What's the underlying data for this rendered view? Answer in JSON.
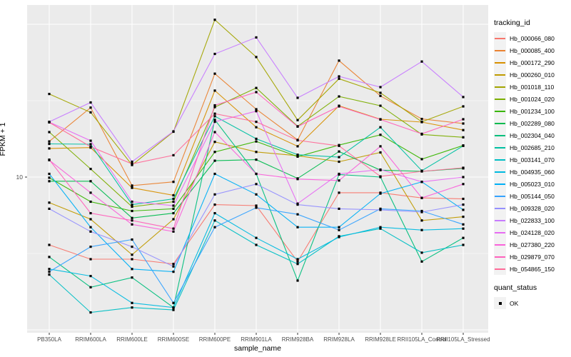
{
  "figure": {
    "y_axis": {
      "title": "FPKM + 1",
      "tick_label": "10",
      "scale": "log10"
    },
    "x_axis": {
      "title": "sample_name"
    },
    "legend": {
      "tracking_title": "tracking_id",
      "quant_title": "quant_status",
      "quant_items": [
        {
          "label": "OK",
          "marker": "black-square"
        }
      ]
    },
    "panel_background": "#EBEBEB",
    "grid_color": "#FFFFFF",
    "tick_color": "#333333",
    "marker_color": "#000000"
  },
  "chart_data": {
    "type": "line",
    "title": "",
    "xlabel": "sample_name",
    "ylabel": "FPKM + 1",
    "yscale": "log10",
    "ylim": [
      1,
      120
    ],
    "y_major_ticks": [
      1,
      10,
      100
    ],
    "y_minor_ticks": [
      3.162,
      31.62
    ],
    "grid": "white major and minor on grey panel",
    "legend_position": "right",
    "marker": "small black square (quant_status OK)",
    "categories": [
      "PB350LA",
      "RRIM600LA",
      "RRIM600LE",
      "RRIM600SE",
      "RRIM600PE",
      "RRIM901LA",
      "RRIM928BA",
      "RRIM928LA",
      "RRIM928LE",
      "RRII105LA_Control",
      "RRII105LA_Stressed"
    ],
    "series": [
      {
        "name": "Hb_000066_080",
        "color": "#F8766D",
        "values": [
          3.6,
          2.9,
          2.9,
          2.7,
          6.6,
          6.5,
          2.8,
          7.9,
          7.9,
          7.3,
          7.2
        ]
      },
      {
        "name": "Hb_000085_400",
        "color": "#EA8331",
        "values": [
          17.1,
          28.5,
          8.8,
          9.3,
          47.5,
          27.8,
          17.5,
          57.8,
          34.0,
          24.0,
          22.4
        ]
      },
      {
        "name": "Hb_000172_290",
        "color": "#D89000",
        "values": [
          15.4,
          15.6,
          8.5,
          7.6,
          36.8,
          21.2,
          15.9,
          29.3,
          23.9,
          22.9,
          20.3
        ]
      },
      {
        "name": "Hb_000260_010",
        "color": "#C09B00",
        "values": [
          6.8,
          5.3,
          3.1,
          5.3,
          17.0,
          14.6,
          13.8,
          12.6,
          14.5,
          5.2,
          5.5
        ]
      },
      {
        "name": "Hb_001018_110",
        "color": "#A3A500",
        "values": [
          35.0,
          26.5,
          12.0,
          19.8,
          107.0,
          61.0,
          23.6,
          44.0,
          35.6,
          23.0,
          29.0
        ]
      },
      {
        "name": "Hb_001024_020",
        "color": "#7CAE00",
        "values": [
          19.7,
          11.3,
          6.4,
          6.9,
          28.7,
          38.3,
          21.5,
          33.7,
          29.3,
          19.0,
          18.2
        ]
      },
      {
        "name": "Hb_001234_100",
        "color": "#39B600",
        "values": [
          9.9,
          6.9,
          6.0,
          6.2,
          14.6,
          17.1,
          13.6,
          16.2,
          18.9,
          13.1,
          16.1
        ]
      },
      {
        "name": "Hb_002289_080",
        "color": "#00BB4E",
        "values": [
          9.4,
          9.4,
          5.4,
          5.8,
          12.8,
          13.0,
          9.8,
          14.7,
          11.1,
          10.9,
          11.4
        ]
      },
      {
        "name": "Hb_002304_040",
        "color": "#00BF7D",
        "values": [
          3.0,
          1.9,
          2.2,
          1.4,
          23.7,
          10.5,
          2.1,
          10.4,
          10.0,
          2.8,
          4.0
        ]
      },
      {
        "name": "Hb_002685_210",
        "color": "#00C1A3",
        "values": [
          16.5,
          16.4,
          6.6,
          7.2,
          25.0,
          17.8,
          14.0,
          13.5,
          21.2,
          11.0,
          16.0
        ]
      },
      {
        "name": "Hb_003141_070",
        "color": "#00BFC4",
        "values": [
          2.3,
          1.3,
          1.4,
          1.35,
          5.2,
          3.6,
          2.7,
          4.1,
          4.6,
          3.2,
          3.6
        ]
      },
      {
        "name": "Hb_004935_060",
        "color": "#00BAE0",
        "values": [
          2.5,
          2.25,
          1.5,
          1.4,
          5.8,
          4.0,
          2.9,
          4.05,
          4.7,
          4.5,
          4.6
        ]
      },
      {
        "name": "Hb_005023_010",
        "color": "#00B0F6",
        "values": [
          10.5,
          4.7,
          2.5,
          2.4,
          10.5,
          7.7,
          4.7,
          4.7,
          7.8,
          9.3,
          6.1
        ]
      },
      {
        "name": "Hb_005144_050",
        "color": "#35A2FF",
        "values": [
          2.4,
          3.5,
          3.9,
          1.5,
          4.7,
          6.3,
          5.7,
          4.5,
          6.2,
          6.0,
          4.9
        ]
      },
      {
        "name": "Hb_009328_020",
        "color": "#9590FF",
        "values": [
          6.2,
          4.4,
          3.5,
          2.6,
          7.7,
          9.0,
          6.6,
          6.2,
          6.1,
          5.9,
          6.6
        ]
      },
      {
        "name": "Hb_022833_100",
        "color": "#C77CFF",
        "values": [
          23.0,
          30.8,
          12.6,
          19.9,
          64.0,
          82.0,
          33.0,
          45.6,
          38.8,
          57.0,
          33.4
        ]
      },
      {
        "name": "Hb_024128_020",
        "color": "#E76BF3",
        "values": [
          22.9,
          17.3,
          6.9,
          6.5,
          23.0,
          27.0,
          6.7,
          10.5,
          11.2,
          9.3,
          10.0
        ]
      },
      {
        "name": "Hb_027380_220",
        "color": "#FA62DB",
        "values": [
          12.9,
          7.9,
          4.9,
          4.4,
          19.7,
          10.5,
          9.7,
          9.5,
          15.9,
          7.3,
          9.0
        ]
      },
      {
        "name": "Hb_029879_070",
        "color": "#FF62BC",
        "values": [
          13.0,
          5.8,
          5.2,
          4.6,
          29.5,
          36.0,
          21.4,
          29.0,
          23.8,
          19.2,
          23.9
        ]
      },
      {
        "name": "Hb_054865_150",
        "color": "#FF6A98",
        "values": [
          22.8,
          15.8,
          12.2,
          13.9,
          26.0,
          23.0,
          17.4,
          16.0,
          10.1,
          10.9,
          11.5
        ]
      }
    ]
  }
}
